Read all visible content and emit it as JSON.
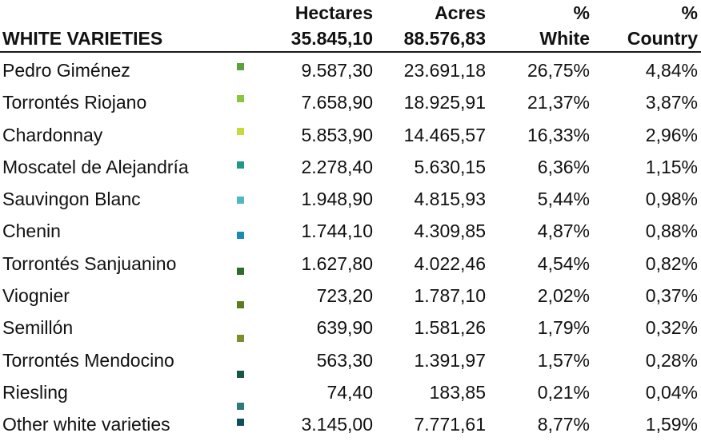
{
  "header": {
    "title": "WHITE VARIETIES",
    "hectares_label": "Hectares",
    "hectares_total": "35.845,10",
    "acres_label": "Acres",
    "acres_total": "88.576,83",
    "pct_white_top": "%",
    "pct_white_bottom": "White",
    "pct_country_top": "%",
    "pct_country_bottom": "Country"
  },
  "rows": [
    {
      "name": "Pedro Giménez",
      "hectares": "9.587,30",
      "acres": "23.691,18",
      "pct_white": "26,75%",
      "pct_country": "4,84%",
      "color": "#5aa33c"
    },
    {
      "name": "Torrontés Riojano",
      "hectares": "7.658,90",
      "acres": "18.925,91",
      "pct_white": "21,37%",
      "pct_country": "3,87%",
      "color": "#8cc63f"
    },
    {
      "name": "Chardonnay",
      "hectares": "5.853,90",
      "acres": "14.465,57",
      "pct_white": "16,33%",
      "pct_country": "2,96%",
      "color": "#c6d93f"
    },
    {
      "name": "Moscatel de Alejandría",
      "hectares": "2.278,40",
      "acres": "5.630,15",
      "pct_white": "6,36%",
      "pct_country": "1,15%",
      "color": "#1e9a86"
    },
    {
      "name": "Sauvingon Blanc",
      "hectares": "1.948,90",
      "acres": "4.815,93",
      "pct_white": "5,44%",
      "pct_country": "0,98%",
      "color": "#4fb8c0"
    },
    {
      "name": "Chenin",
      "hectares": "1.744,10",
      "acres": "4.309,85",
      "pct_white": "4,87%",
      "pct_country": "0,88%",
      "color": "#1a8ab8"
    },
    {
      "name": "Torrontés Sanjuanino",
      "hectares": "1.627,80",
      "acres": "4.022,46",
      "pct_white": "4,54%",
      "pct_country": "0,82%",
      "color": "#2f6b2a"
    },
    {
      "name": "Viognier",
      "hectares": "723,20",
      "acres": "1.787,10",
      "pct_white": "2,02%",
      "pct_country": "0,37%",
      "color": "#5e7a22"
    },
    {
      "name": "Semillón",
      "hectares": "639,90",
      "acres": "1.581,26",
      "pct_white": "1,79%",
      "pct_country": "0,32%",
      "color": "#7d8f2a"
    },
    {
      "name": "Torrontés Mendocino",
      "hectares": "563,30",
      "acres": "1.391,97",
      "pct_white": "1,57%",
      "pct_country": "0,28%",
      "color": "#17574a"
    },
    {
      "name": "Riesling",
      "hectares": "74,40",
      "acres": "183,85",
      "pct_white": "0,21%",
      "pct_country": "0,04%",
      "color": "#2f7a7a"
    },
    {
      "name": "Other white varieties",
      "hectares": "3.145,00",
      "acres": "7.771,61",
      "pct_white": "8,77%",
      "pct_country": "1,59%",
      "color": "#0f4f5a"
    }
  ],
  "extra_swatch_color": "#6cc24a"
}
